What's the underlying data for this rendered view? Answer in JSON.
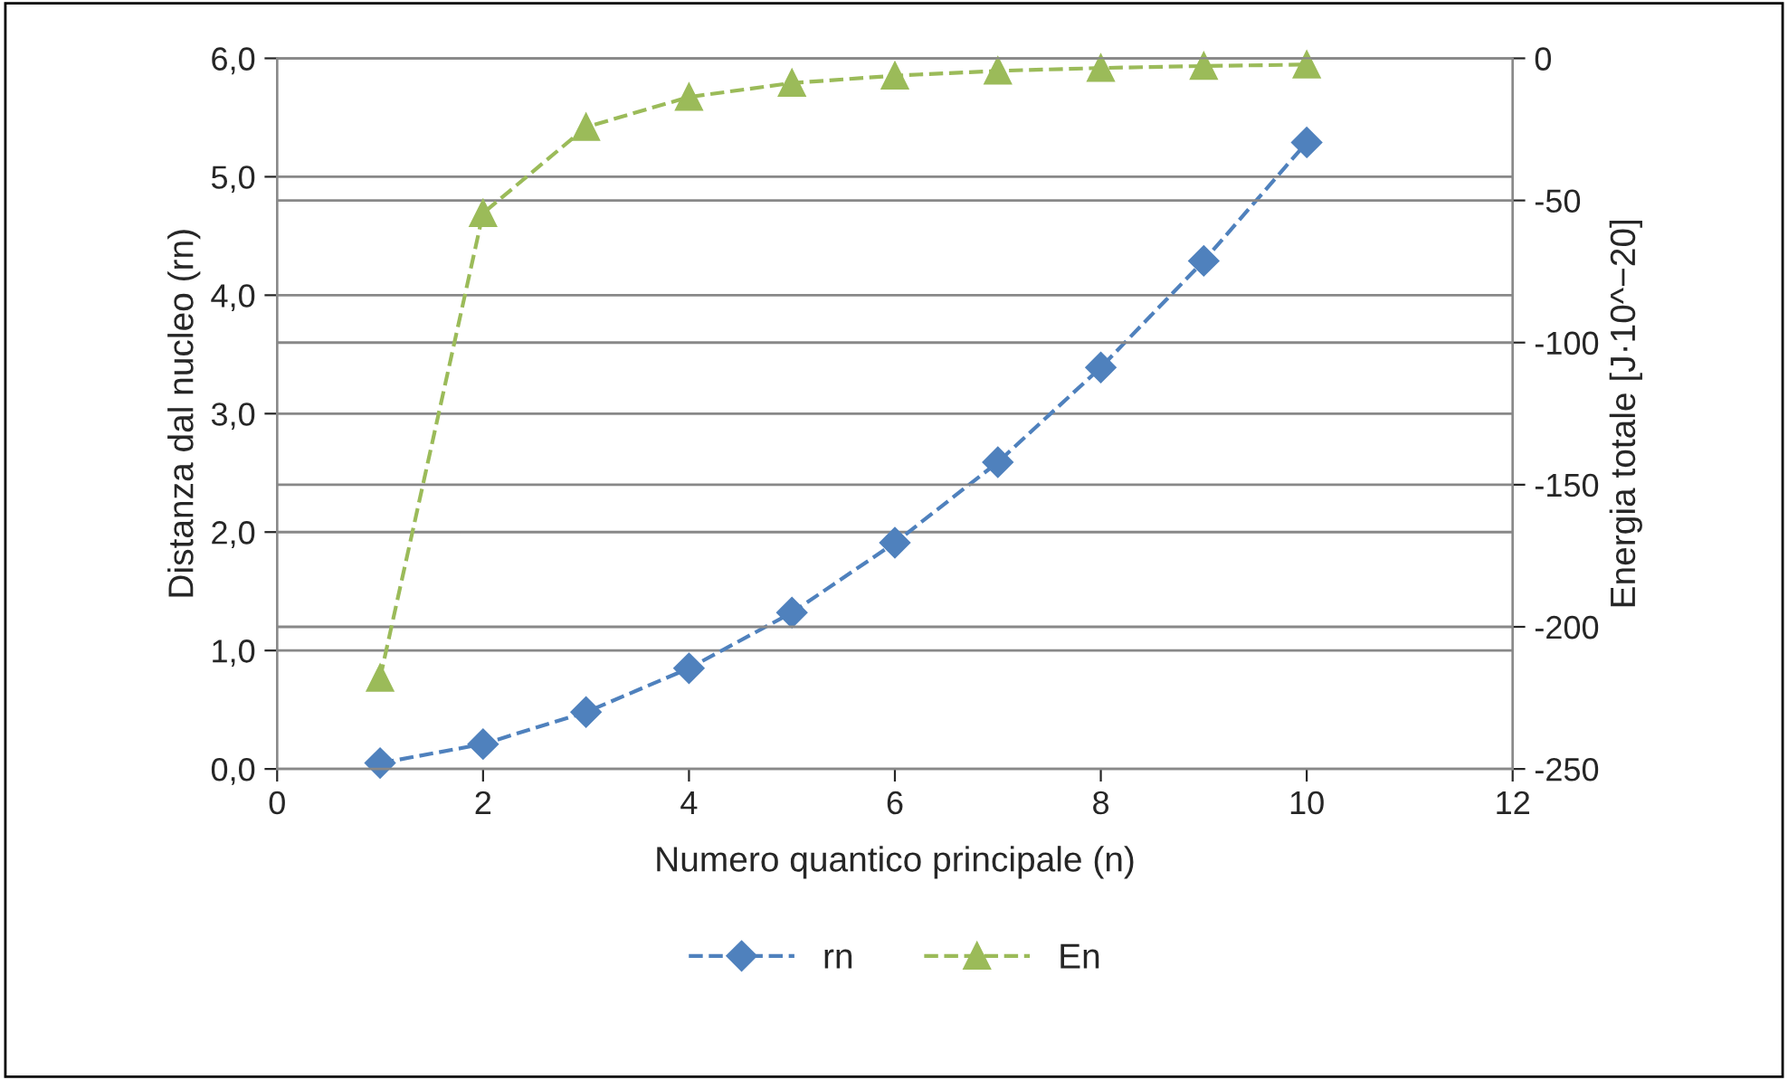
{
  "chart_data": {
    "type": "line",
    "xlabel": "Numero quantico principale (n)",
    "ylabel": "Distanza dal nucleo (rn)",
    "y2label": "Energia totale [J·10^−20]",
    "x": [
      1,
      2,
      3,
      4,
      5,
      6,
      7,
      8,
      9,
      10
    ],
    "series": [
      {
        "name": "rn",
        "color": "#4f81bd",
        "marker": "diamond",
        "values": [
          0.05,
          0.21,
          0.48,
          0.85,
          1.32,
          1.91,
          2.59,
          3.39,
          4.29,
          5.29
        ]
      },
      {
        "name": "En",
        "color": "#9bbb59",
        "marker": "triangle",
        "axis": "y2",
        "values": [
          -218,
          -54.5,
          -24.2,
          -13.6,
          -8.7,
          -6.1,
          -4.4,
          -3.4,
          -2.7,
          -2.2
        ]
      }
    ],
    "xlim": [
      0,
      12
    ],
    "xticks": [
      0,
      2,
      4,
      6,
      8,
      10,
      12
    ],
    "ylim": [
      0,
      6
    ],
    "yticks": [
      {
        "value": 0,
        "label": "0,0"
      },
      {
        "value": 1,
        "label": "1,0"
      },
      {
        "value": 2,
        "label": "2,0"
      },
      {
        "value": 3,
        "label": "3,0"
      },
      {
        "value": 4,
        "label": "4,0"
      },
      {
        "value": 5,
        "label": "5,0"
      },
      {
        "value": 6,
        "label": "6,0"
      }
    ],
    "y2lim": [
      -250,
      0
    ],
    "y2ticks": [
      -250,
      -200,
      -150,
      -100,
      -50,
      0
    ],
    "grid": "y",
    "legend": "bottom",
    "line_style": "dashed"
  }
}
